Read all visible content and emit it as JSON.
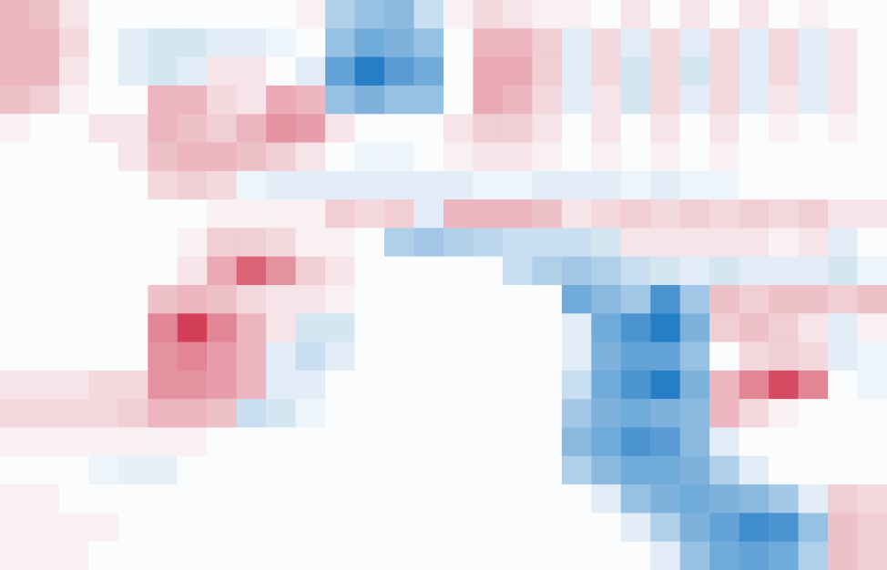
{
  "chart_data": {
    "type": "heatmap",
    "tick_labels": false,
    "color_range": [
      -1,
      1
    ],
    "cells": [
      [
        0.3,
        0.25,
        0.1,
        0,
        0,
        0,
        0,
        0,
        0,
        0,
        0.05,
        -0.3,
        -0.4,
        -0.45,
        -0.2,
        0.05,
        0.15,
        0.1,
        0.05,
        0.05,
        0,
        0.1,
        0,
        0.1,
        0,
        0.1,
        0,
        0.05,
        0,
        0
      ],
      [
        0.3,
        0.3,
        0.15,
        0,
        -0.1,
        -0.15,
        -0.15,
        -0.1,
        -0.1,
        -0.05,
        0,
        -0.4,
        -0.55,
        -0.5,
        -0.4,
        0,
        0.3,
        0.3,
        0.2,
        -0.1,
        0.15,
        -0.1,
        0.15,
        -0.1,
        0.15,
        -0.1,
        0.15,
        -0.1,
        0.1,
        0
      ],
      [
        0.3,
        0.3,
        0.1,
        0,
        -0.1,
        -0.15,
        -0.1,
        0.1,
        0.1,
        0,
        -0.1,
        -0.6,
        -0.85,
        -0.65,
        -0.55,
        0,
        0.35,
        0.35,
        0.2,
        -0.1,
        0.15,
        -0.15,
        0.15,
        -0.15,
        0.15,
        -0.1,
        0.15,
        -0.1,
        0.1,
        0
      ],
      [
        0.25,
        0.2,
        0.05,
        0,
        0,
        0.3,
        0.3,
        0.15,
        0.1,
        0.35,
        0.3,
        -0.4,
        -0.5,
        -0.4,
        -0.4,
        0,
        0.35,
        0.3,
        0.15,
        -0.1,
        0.1,
        -0.15,
        0.15,
        -0.1,
        0.15,
        -0.1,
        0.1,
        -0.1,
        0.1,
        0
      ],
      [
        0.05,
        0,
        0,
        0.1,
        0.1,
        0.3,
        0.25,
        0.2,
        0.3,
        0.45,
        0.4,
        0.1,
        0,
        0,
        0,
        0.1,
        0.2,
        0.2,
        0.1,
        0,
        0.1,
        0,
        0.1,
        0,
        0.1,
        0,
        0.05,
        0,
        0.05,
        0
      ],
      [
        0,
        0,
        0,
        0,
        0.1,
        0.25,
        0.3,
        0.3,
        0.25,
        0.2,
        0.1,
        0,
        -0.05,
        -0.05,
        0,
        0.05,
        0.1,
        0.1,
        0.05,
        0,
        0.05,
        0,
        0.05,
        0,
        0.05,
        0,
        0,
        0,
        0,
        0
      ],
      [
        0,
        0,
        0,
        0,
        0,
        0.15,
        0.2,
        0.15,
        -0.05,
        -0.1,
        -0.1,
        -0.1,
        -0.1,
        -0.1,
        -0.1,
        -0.1,
        -0.05,
        -0.05,
        -0.1,
        -0.1,
        -0.1,
        -0.05,
        -0.1,
        -0.05,
        -0.05,
        0,
        0,
        0,
        0,
        0
      ],
      [
        0,
        0,
        0,
        0,
        0,
        0,
        0,
        0.05,
        0.05,
        0.05,
        0.05,
        0.2,
        0.15,
        0.2,
        -0.1,
        0.3,
        0.3,
        0.3,
        0.25,
        0.1,
        0.15,
        0.2,
        0.15,
        0.2,
        0.15,
        0.2,
        0.15,
        0.2,
        0.1,
        0.1
      ],
      [
        0,
        0,
        0,
        0,
        0,
        0,
        0.05,
        0.2,
        0.2,
        0.15,
        0.05,
        0.05,
        0,
        -0.3,
        -0.35,
        -0.3,
        -0.25,
        -0.2,
        -0.2,
        -0.2,
        -0.15,
        0.1,
        0.1,
        0.1,
        0.1,
        0.1,
        0.05,
        0.1,
        -0.1,
        0
      ],
      [
        0,
        0,
        0,
        0,
        0,
        0,
        0.1,
        0.35,
        0.65,
        0.45,
        0.2,
        0.1,
        0,
        0,
        0,
        0,
        0,
        -0.2,
        -0.3,
        -0.35,
        -0.3,
        -0.2,
        -0.15,
        -0.1,
        -0.15,
        -0.1,
        -0.1,
        -0.1,
        -0.15,
        -0.05
      ],
      [
        0,
        0,
        0,
        0,
        0,
        0.25,
        0.3,
        0.25,
        0.15,
        0.1,
        0.1,
        0.05,
        0,
        0,
        0,
        0,
        0,
        0,
        0,
        -0.55,
        -0.45,
        -0.35,
        -0.7,
        -0.35,
        0.25,
        0.2,
        0.25,
        0.25,
        0.2,
        0.25
      ],
      [
        0,
        0,
        0,
        0,
        0,
        0.5,
        0.8,
        0.5,
        0.3,
        0.1,
        -0.15,
        -0.15,
        0,
        0,
        0,
        0,
        0,
        0,
        0,
        -0.1,
        -0.55,
        -0.7,
        -0.85,
        -0.5,
        0.2,
        0.25,
        0.2,
        0.1,
        -0.1,
        0.05
      ],
      [
        0,
        0,
        0,
        0,
        0,
        0.45,
        0.5,
        0.4,
        0.3,
        -0.1,
        -0.2,
        -0.1,
        0,
        0,
        0,
        0,
        0,
        0,
        0,
        -0.1,
        -0.5,
        -0.6,
        -0.6,
        -0.4,
        0,
        0.15,
        0.2,
        0.15,
        -0.1,
        -0.05
      ],
      [
        0.1,
        0.1,
        0.1,
        0.15,
        0.15,
        0.45,
        0.45,
        0.4,
        0.3,
        -0.1,
        -0.1,
        0,
        0,
        0,
        0,
        0,
        0,
        0,
        0,
        -0.2,
        -0.55,
        -0.7,
        -0.85,
        -0.5,
        0.3,
        0.5,
        0.75,
        0.5,
        0,
        -0.05
      ],
      [
        0.15,
        0.15,
        0.15,
        0.15,
        0.2,
        0.3,
        0.3,
        0.25,
        -0.2,
        -0.15,
        -0.05,
        0,
        0,
        0,
        0,
        0,
        0,
        0,
        0,
        -0.35,
        -0.5,
        -0.55,
        -0.5,
        -0.45,
        0.3,
        0.15,
        0.05,
        0,
        0,
        0
      ],
      [
        0.05,
        0.05,
        0.05,
        0.05,
        0.05,
        0.05,
        0.05,
        0,
        0,
        0,
        0,
        0,
        0,
        0,
        0,
        0,
        0,
        0,
        0,
        -0.45,
        -0.55,
        -0.7,
        -0.65,
        -0.45,
        -0.1,
        0,
        0,
        0,
        0,
        0
      ],
      [
        0,
        0,
        0,
        -0.05,
        -0.08,
        -0.08,
        0,
        0,
        0,
        0,
        0,
        0,
        0,
        0,
        0,
        0,
        0,
        0,
        0,
        -0.3,
        -0.45,
        -0.55,
        -0.55,
        -0.5,
        -0.3,
        -0.1,
        0,
        0,
        0,
        0
      ],
      [
        0.05,
        0.05,
        0,
        0,
        0,
        0,
        0,
        0,
        0,
        0,
        0,
        0,
        0,
        0,
        0,
        0,
        0,
        0,
        0,
        0,
        -0.1,
        -0.4,
        -0.5,
        -0.55,
        -0.5,
        -0.45,
        -0.35,
        -0.1,
        0.2,
        0.15
      ],
      [
        0.05,
        0.05,
        0.05,
        0.05,
        0,
        0,
        0,
        0,
        0,
        0,
        0,
        0,
        0,
        0,
        0,
        0,
        0,
        0,
        0,
        0,
        0,
        -0.1,
        -0.3,
        -0.5,
        -0.6,
        -0.75,
        -0.7,
        -0.4,
        0.25,
        0.2
      ],
      [
        0.05,
        0.05,
        0.05,
        0,
        0,
        0,
        0,
        0,
        0,
        0,
        0,
        0,
        0,
        0,
        0,
        0,
        0,
        0,
        0,
        0,
        0,
        0,
        -0.1,
        -0.4,
        -0.55,
        -0.6,
        -0.55,
        -0.3,
        0.25,
        0.2
      ]
    ]
  }
}
